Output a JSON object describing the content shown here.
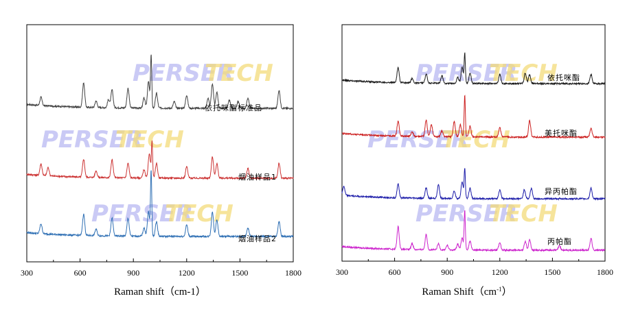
{
  "watermark": {
    "part1": "PERSER",
    "part2": "TECH"
  },
  "chart_data": [
    {
      "type": "line",
      "title": "",
      "xlabel": "Raman shift（cm-1）",
      "ylabel": "",
      "xlim": [
        300,
        1800
      ],
      "xticks": [
        "300",
        "600",
        "900",
        "1200",
        "1500",
        "1800"
      ],
      "series": [
        {
          "name": "依托咪酯标准品",
          "color": "#404040",
          "peaks": [
            [
              380,
              0.25
            ],
            [
              620,
              0.75
            ],
            [
              690,
              0.2
            ],
            [
              760,
              0.25
            ],
            [
              780,
              0.55
            ],
            [
              870,
              0.6
            ],
            [
              960,
              0.3
            ],
            [
              985,
              0.8
            ],
            [
              1000,
              1.6
            ],
            [
              1030,
              0.45
            ],
            [
              1130,
              0.2
            ],
            [
              1200,
              0.4
            ],
            [
              1320,
              0.3
            ],
            [
              1345,
              0.75
            ],
            [
              1370,
              0.5
            ],
            [
              1440,
              0.25
            ],
            [
              1490,
              0.2
            ],
            [
              1545,
              0.3
            ],
            [
              1720,
              0.55
            ]
          ]
        },
        {
          "name": "烟油样品1",
          "color": "#cc3333",
          "peaks": [
            [
              380,
              0.35
            ],
            [
              420,
              0.25
            ],
            [
              620,
              0.55
            ],
            [
              690,
              0.2
            ],
            [
              780,
              0.55
            ],
            [
              870,
              0.45
            ],
            [
              960,
              0.25
            ],
            [
              990,
              0.75
            ],
            [
              1005,
              1.1
            ],
            [
              1030,
              0.45
            ],
            [
              1200,
              0.35
            ],
            [
              1345,
              0.65
            ],
            [
              1370,
              0.45
            ],
            [
              1545,
              0.3
            ],
            [
              1720,
              0.45
            ]
          ]
        },
        {
          "name": "烟油样品2",
          "color": "#2e6fb4",
          "peaks": [
            [
              380,
              0.3
            ],
            [
              620,
              0.65
            ],
            [
              690,
              0.2
            ],
            [
              780,
              0.55
            ],
            [
              870,
              0.55
            ],
            [
              960,
              0.25
            ],
            [
              985,
              0.75
            ],
            [
              1000,
              2.0
            ],
            [
              1030,
              0.45
            ],
            [
              1200,
              0.35
            ],
            [
              1345,
              0.75
            ],
            [
              1370,
              0.5
            ],
            [
              1545,
              0.25
            ],
            [
              1720,
              0.45
            ]
          ]
        }
      ]
    },
    {
      "type": "line",
      "title": "",
      "xlabel": "Raman Shift（cm",
      "xlabel_sup": "-1",
      "xlabel_tail": "）",
      "ylabel": "",
      "xlim": [
        300,
        1800
      ],
      "xticks": [
        "300",
        "600",
        "900",
        "1200",
        "1500",
        "1800"
      ],
      "series": [
        {
          "name": "依托咪酯",
          "color": "#1a1a1a",
          "peaks": [
            [
              620,
              0.5
            ],
            [
              700,
              0.15
            ],
            [
              780,
              0.3
            ],
            [
              870,
              0.25
            ],
            [
              960,
              0.2
            ],
            [
              985,
              0.55
            ],
            [
              1000,
              1.0
            ],
            [
              1030,
              0.35
            ],
            [
              1200,
              0.3
            ],
            [
              1345,
              0.35
            ],
            [
              1370,
              0.3
            ],
            [
              1720,
              0.3
            ]
          ]
        },
        {
          "name": "美托咪酯",
          "color": "#cc1f1f",
          "peaks": [
            [
              620,
              0.5
            ],
            [
              700,
              0.15
            ],
            [
              780,
              0.55
            ],
            [
              810,
              0.4
            ],
            [
              870,
              0.2
            ],
            [
              940,
              0.5
            ],
            [
              975,
              0.4
            ],
            [
              1000,
              1.4
            ],
            [
              1030,
              0.35
            ],
            [
              1200,
              0.3
            ],
            [
              1370,
              0.55
            ],
            [
              1720,
              0.3
            ]
          ]
        },
        {
          "name": "异丙帕酯",
          "color": "#1a1aa8",
          "peaks": [
            [
              310,
              0.3
            ],
            [
              620,
              0.45
            ],
            [
              780,
              0.35
            ],
            [
              850,
              0.45
            ],
            [
              940,
              0.25
            ],
            [
              985,
              0.55
            ],
            [
              1000,
              1.0
            ],
            [
              1030,
              0.35
            ],
            [
              1200,
              0.3
            ],
            [
              1340,
              0.3
            ],
            [
              1380,
              0.35
            ],
            [
              1720,
              0.35
            ]
          ]
        },
        {
          "name": "丙帕酯",
          "color": "#cc22cc",
          "peaks": [
            [
              620,
              0.75
            ],
            [
              700,
              0.2
            ],
            [
              780,
              0.5
            ],
            [
              850,
              0.2
            ],
            [
              900,
              0.15
            ],
            [
              960,
              0.2
            ],
            [
              985,
              0.4
            ],
            [
              1000,
              1.3
            ],
            [
              1030,
              0.3
            ],
            [
              1200,
              0.25
            ],
            [
              1345,
              0.3
            ],
            [
              1370,
              0.35
            ],
            [
              1540,
              0.15
            ],
            [
              1720,
              0.4
            ]
          ]
        }
      ]
    }
  ]
}
